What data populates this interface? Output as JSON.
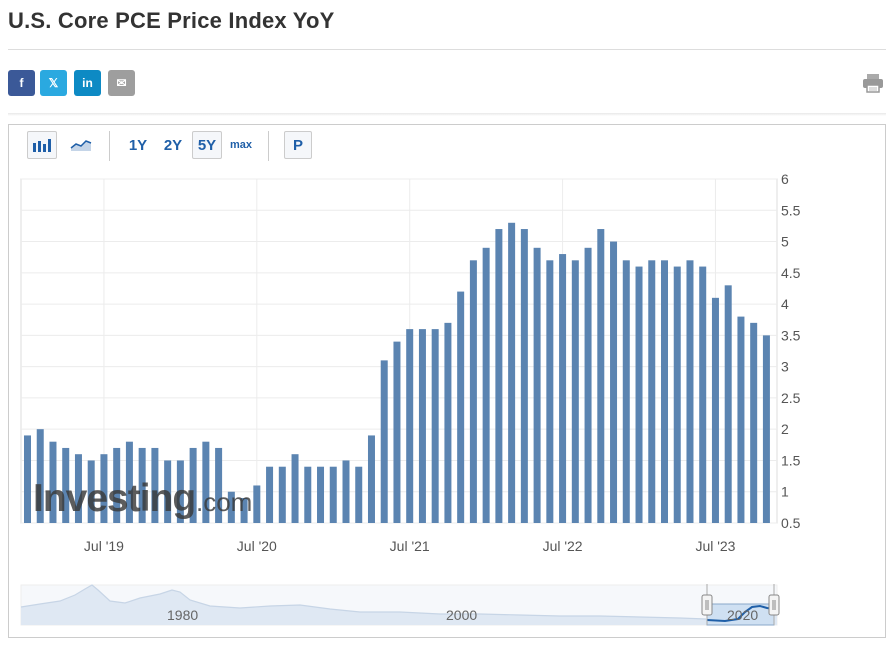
{
  "page": {
    "title": "U.S. Core PCE Price Index YoY"
  },
  "share": [
    {
      "name": "facebook",
      "icon": "f",
      "color": "#3b5998"
    },
    {
      "name": "twitter-x",
      "icon": "𝕏",
      "color": "#2aa9e0"
    },
    {
      "name": "linkedin",
      "icon": "in",
      "color": "#0d8ac4"
    },
    {
      "name": "email",
      "icon": "✉",
      "color": "#9e9e9e"
    }
  ],
  "toolbar": {
    "range_1y": "1Y",
    "range_2y": "2Y",
    "range_5y": "5Y",
    "range_max": "max",
    "p_label": "P",
    "active_range": "5Y"
  },
  "watermark": {
    "brand": "Investing",
    "suffix": ".com"
  },
  "chart_data": {
    "type": "bar",
    "title": "",
    "xlabel": "",
    "ylabel": "",
    "ylim": [
      0.5,
      6
    ],
    "yticks": [
      "6",
      "5.5",
      "5",
      "4.5",
      "4",
      "3.5",
      "3",
      "2.5",
      "2",
      "1.5",
      "1",
      "0.5"
    ],
    "xticks": [
      {
        "label": "Jul '19",
        "index": 6
      },
      {
        "label": "Jul '20",
        "index": 18
      },
      {
        "label": "Jul '21",
        "index": 30
      },
      {
        "label": "Jul '22",
        "index": 42
      },
      {
        "label": "Jul '23",
        "index": 54
      }
    ],
    "bar_color": "#5b84b1",
    "values": [
      1.9,
      2.0,
      1.8,
      1.7,
      1.6,
      1.5,
      1.6,
      1.7,
      1.8,
      1.7,
      1.7,
      1.5,
      1.5,
      1.7,
      1.8,
      1.7,
      1.0,
      0.9,
      1.1,
      1.4,
      1.4,
      1.6,
      1.4,
      1.4,
      1.4,
      1.5,
      1.4,
      1.9,
      3.1,
      3.4,
      3.6,
      3.6,
      3.6,
      3.7,
      4.2,
      4.7,
      4.9,
      5.2,
      5.3,
      5.2,
      4.9,
      4.7,
      4.8,
      4.7,
      4.9,
      5.2,
      5.0,
      4.7,
      4.6,
      4.7,
      4.7,
      4.6,
      4.7,
      4.6,
      4.1,
      4.3,
      3.8,
      3.7,
      3.5
    ],
    "navigator": {
      "labels": [
        "1980",
        "2000",
        "2020"
      ],
      "selected_range": "5Y"
    }
  }
}
